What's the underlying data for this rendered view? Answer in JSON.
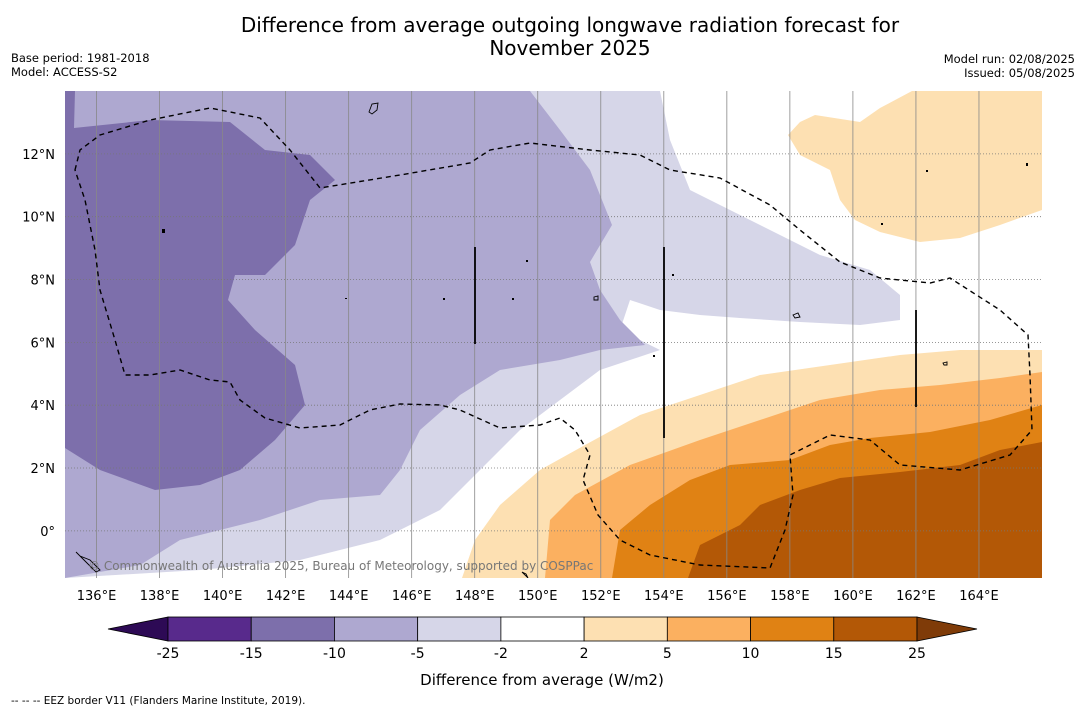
{
  "title_line1": "Difference from average outgoing longwave radiation forecast for",
  "title_line2": "November 2025",
  "base_period": "Base period: 1981-2018",
  "model": "Model: ACCESS-S2",
  "model_run": "Model run: 02/08/2025",
  "issued": "Issued: 05/08/2025",
  "copyright": "© Commonwealth of Australia 2025, Bureau of Meteorology, supported by COSPPac",
  "colorbar_label": "Difference from average (W/m2)",
  "footnote": "-- -- -- EEZ border V11 (Flanders Marine Institute, 2019).",
  "x_ticks": [
    "136°E",
    "138°E",
    "140°E",
    "142°E",
    "144°E",
    "146°E",
    "148°E",
    "150°E",
    "152°E",
    "154°E",
    "156°E",
    "158°E",
    "160°E",
    "162°E",
    "164°E"
  ],
  "y_ticks": [
    "12°N",
    "10°N",
    "8°N",
    "6°N",
    "4°N",
    "2°N",
    "0°"
  ],
  "colorbar_ticks": [
    "-25",
    "-15",
    "-10",
    "-5",
    "-2",
    "2",
    "5",
    "10",
    "15",
    "25"
  ],
  "colorbar_colors": [
    "#2d0a55",
    "#582a8c",
    "#7d6fab",
    "#aea8d0",
    "#d6d6e8",
    "#ffffff",
    "#fde0b2",
    "#fbb060",
    "#e08214",
    "#b35806",
    "#7f3b08"
  ],
  "map_extent": {
    "lon": [
      135.0,
      166.0
    ],
    "lat": [
      -1.5,
      14.0
    ]
  }
}
